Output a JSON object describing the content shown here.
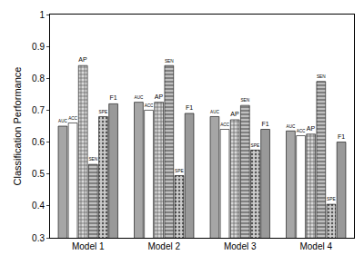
{
  "chart_data": {
    "type": "bar",
    "y_label": "Classification Performance",
    "categories": [
      "Model 1",
      "Model 2",
      "Model 3",
      "Model 4"
    ],
    "series": [
      {
        "name": "AUC",
        "color": "#a6a6a6",
        "values": [
          0.65,
          0.725,
          0.68,
          0.635
        ]
      },
      {
        "name": "ACC",
        "color": "#ffffff",
        "values": [
          0.66,
          0.7,
          0.64,
          0.62
        ]
      },
      {
        "name": "AP",
        "color": "#d9d9d9",
        "values": [
          0.84,
          0.725,
          0.67,
          0.625
        ]
      },
      {
        "name": "SEN",
        "color": "#bfbfbf",
        "values": [
          0.53,
          0.84,
          0.715,
          0.79
        ]
      },
      {
        "name": "SPE",
        "color": "#cccccc",
        "values": [
          0.68,
          0.495,
          0.575,
          0.405
        ]
      },
      {
        "name": "F1",
        "color": "#999999",
        "values": [
          0.72,
          0.69,
          0.64,
          0.6
        ]
      }
    ],
    "ylim": [
      0.3,
      1
    ],
    "yticks": [
      0.3,
      0.4,
      0.5,
      0.6,
      0.7,
      0.8,
      0.9,
      1
    ],
    "grid": false
  }
}
